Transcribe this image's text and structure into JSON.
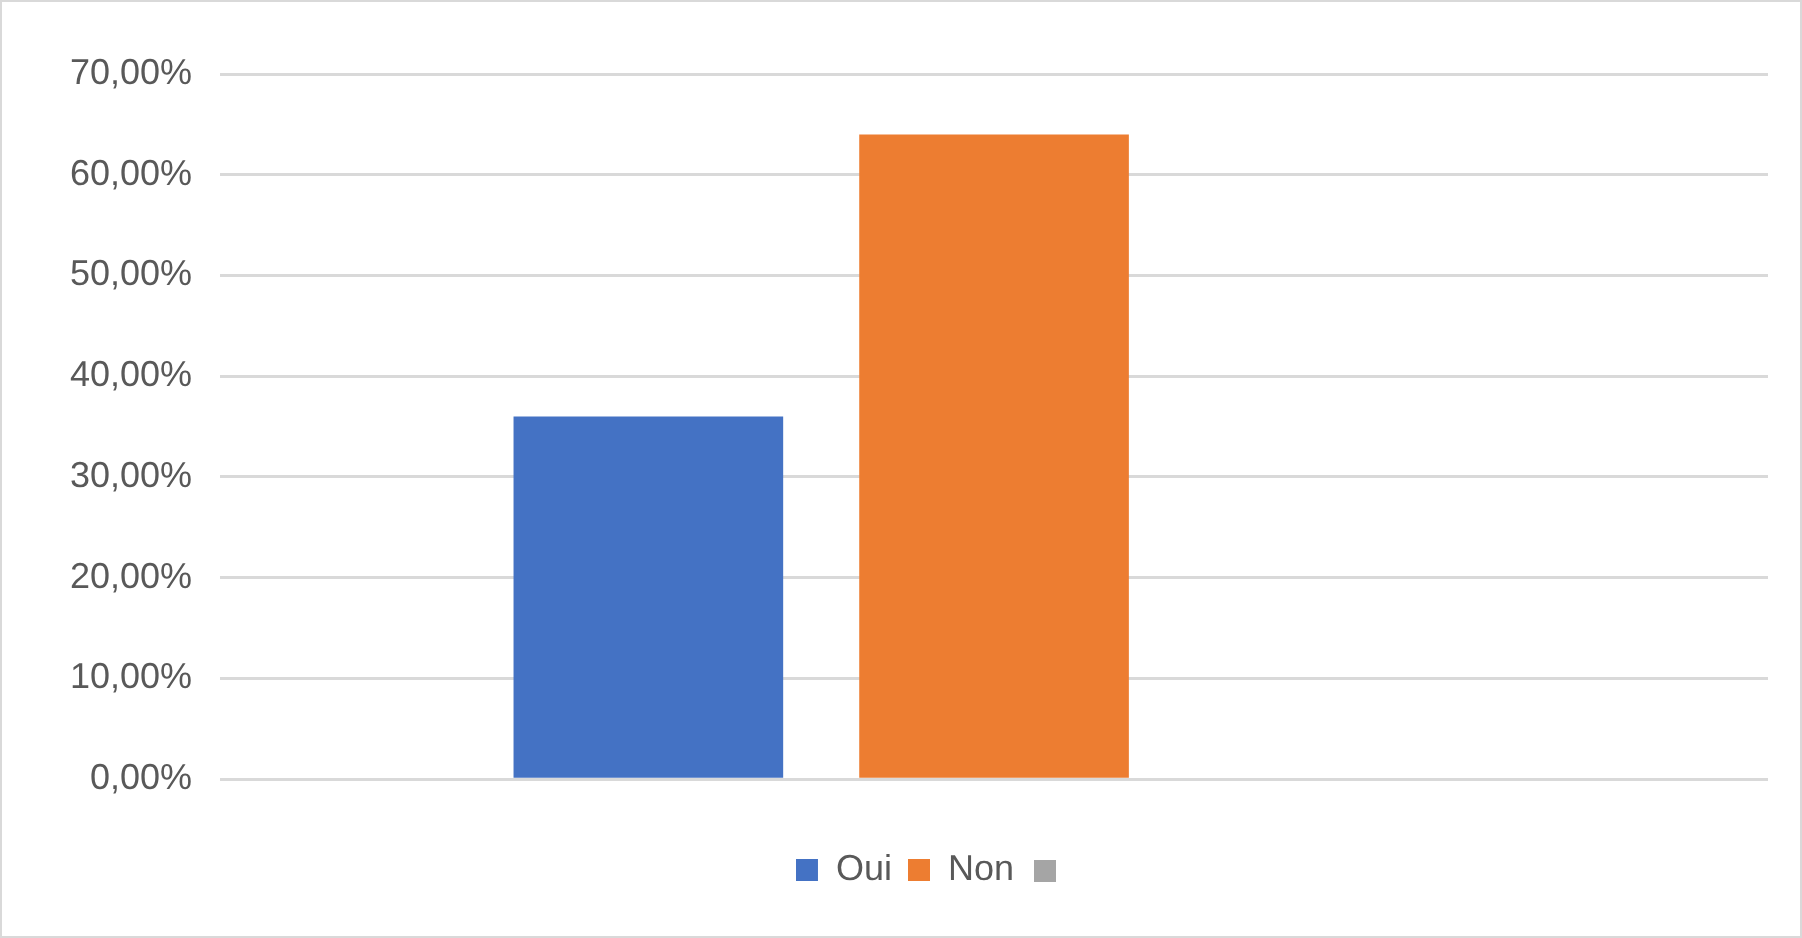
{
  "chart_data": {
    "type": "bar",
    "categories": [
      null
    ],
    "series": [
      {
        "name": "Oui",
        "color": "#4472c4",
        "values": [
          36
        ]
      },
      {
        "name": "Non",
        "color": "#ed7d31",
        "values": [
          64
        ]
      },
      {
        "color": "#a5a5a5",
        "values": [
          null
        ]
      }
    ],
    "ylim": [
      0,
      70
    ],
    "yticks": [
      {
        "value": 0,
        "label": "0,00%"
      },
      {
        "value": 10,
        "label": "10,00%"
      },
      {
        "value": 20,
        "label": "20,00%"
      },
      {
        "value": 30,
        "label": "30,00%"
      },
      {
        "value": 40,
        "label": "40,00%"
      },
      {
        "value": 50,
        "label": "50,00%"
      },
      {
        "value": 60,
        "label": "60,00%"
      },
      {
        "value": 70,
        "label": "70,00%"
      }
    ],
    "grid": "y",
    "legend": "bottom"
  }
}
